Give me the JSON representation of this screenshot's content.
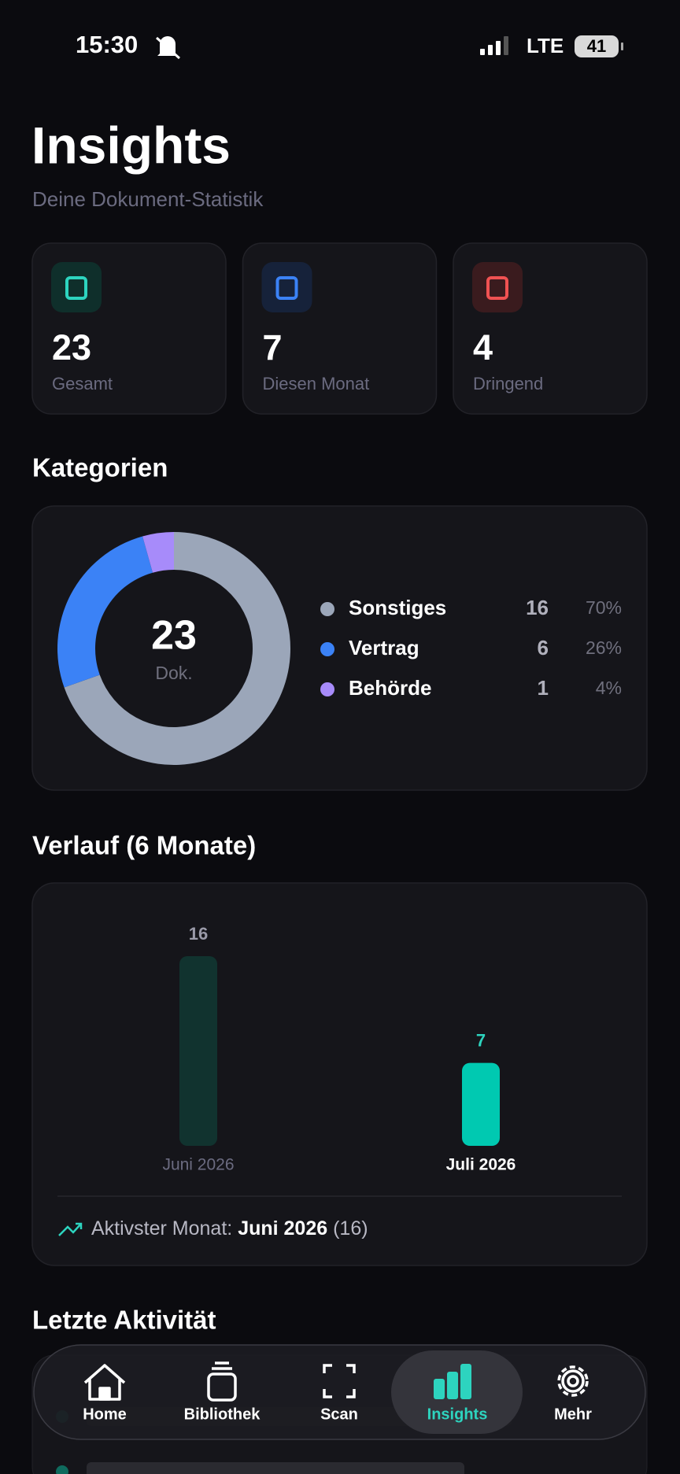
{
  "status": {
    "time": "15:30",
    "network": "LTE",
    "battery": "41"
  },
  "header": {
    "title": "Insights",
    "subtitle": "Deine Dokument-Statistik"
  },
  "stats": [
    {
      "value": 23,
      "label": "Gesamt"
    },
    {
      "value": 7,
      "label": "Diesen Monat"
    },
    {
      "value": 4,
      "label": "Dringend"
    }
  ],
  "sections": {
    "categories": "Kategorien",
    "history": "Verlauf (6 Monate)",
    "activity": "Letzte Aktivität"
  },
  "chart_data": [
    {
      "type": "pie",
      "total": 23,
      "total_label": "Dok.",
      "categories": [
        "Sonstiges",
        "Vertrag",
        "Behörde"
      ],
      "values": [
        16,
        6,
        1
      ],
      "percent_labels": [
        "70%",
        "26%",
        "4%"
      ],
      "colors": [
        "#9ba6b9",
        "#3b82f6",
        "#a78bfa"
      ]
    },
    {
      "type": "bar",
      "categories": [
        "Juni 2026",
        "Juli 2026"
      ],
      "values": [
        16,
        7
      ],
      "colors": [
        "#11332f",
        "#00c9b1"
      ],
      "highlight": 1,
      "footer": {
        "label": "Aktivster Monat:",
        "month": "Juni 2026",
        "count": "(16)"
      }
    }
  ],
  "nav": [
    {
      "label": "Home"
    },
    {
      "label": "Bibliothek"
    },
    {
      "label": "Scan"
    },
    {
      "label": "Insights",
      "active": true
    },
    {
      "label": "Mehr"
    }
  ]
}
